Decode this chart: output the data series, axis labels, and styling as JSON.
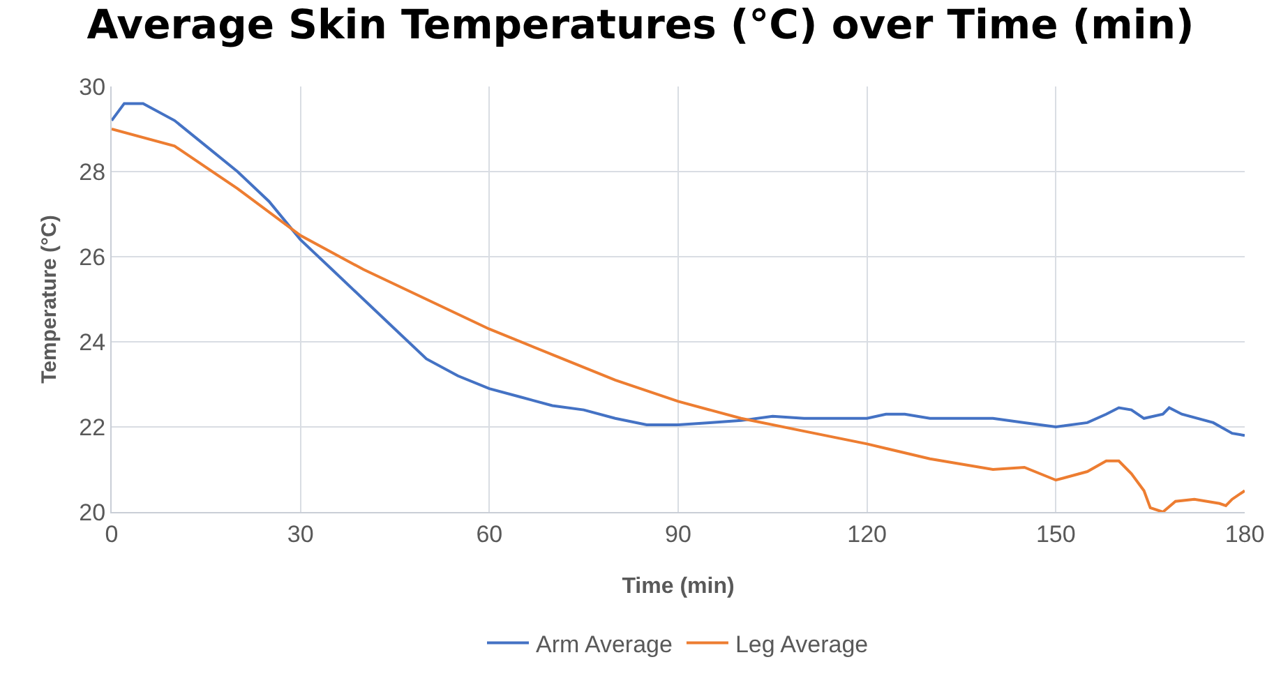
{
  "chart_data": {
    "type": "line",
    "title": "Average Skin Temperatures (°C) over Time (min)",
    "xlabel": "Time (min)",
    "ylabel": "Temperature (°C)",
    "xlim": [
      0,
      180
    ],
    "xticks": [
      0,
      30,
      60,
      90,
      120,
      150,
      180
    ],
    "ylim": [
      20,
      30
    ],
    "yticks": [
      20,
      22,
      24,
      26,
      28,
      30
    ],
    "grid": true,
    "legend": "bottom",
    "marker": "none",
    "line_style": "solid",
    "series": [
      {
        "name": "Arm Average",
        "color": "#4472c4",
        "x": [
          0,
          2,
          5,
          10,
          15,
          20,
          25,
          30,
          35,
          40,
          45,
          50,
          55,
          60,
          65,
          70,
          75,
          80,
          85,
          90,
          95,
          100,
          105,
          110,
          115,
          120,
          123,
          126,
          130,
          135,
          140,
          145,
          150,
          155,
          158,
          160,
          162,
          164,
          167,
          168,
          170,
          175,
          178,
          180
        ],
        "values": [
          29.2,
          29.6,
          29.6,
          29.2,
          28.6,
          28.0,
          27.3,
          26.4,
          25.7,
          25.0,
          24.3,
          23.6,
          23.2,
          22.9,
          22.7,
          22.5,
          22.4,
          22.2,
          22.05,
          22.05,
          22.1,
          22.15,
          22.25,
          22.2,
          22.2,
          22.2,
          22.3,
          22.3,
          22.2,
          22.2,
          22.2,
          22.1,
          22.0,
          22.1,
          22.3,
          22.45,
          22.4,
          22.2,
          22.3,
          22.45,
          22.3,
          22.1,
          21.85,
          21.8
        ]
      },
      {
        "name": "Leg Average",
        "color": "#ed7d31",
        "x": [
          0,
          10,
          20,
          30,
          40,
          50,
          60,
          70,
          80,
          90,
          100,
          110,
          120,
          130,
          140,
          145,
          150,
          155,
          158,
          160,
          162,
          164,
          165,
          167,
          169,
          172,
          176,
          177,
          178,
          180
        ],
        "values": [
          29.0,
          28.6,
          27.6,
          26.5,
          25.7,
          25.0,
          24.3,
          23.7,
          23.1,
          22.6,
          22.2,
          21.9,
          21.6,
          21.25,
          21.0,
          21.05,
          20.75,
          20.95,
          21.2,
          21.2,
          20.9,
          20.5,
          20.1,
          20.0,
          20.25,
          20.3,
          20.2,
          20.15,
          20.3,
          20.5
        ]
      }
    ]
  }
}
